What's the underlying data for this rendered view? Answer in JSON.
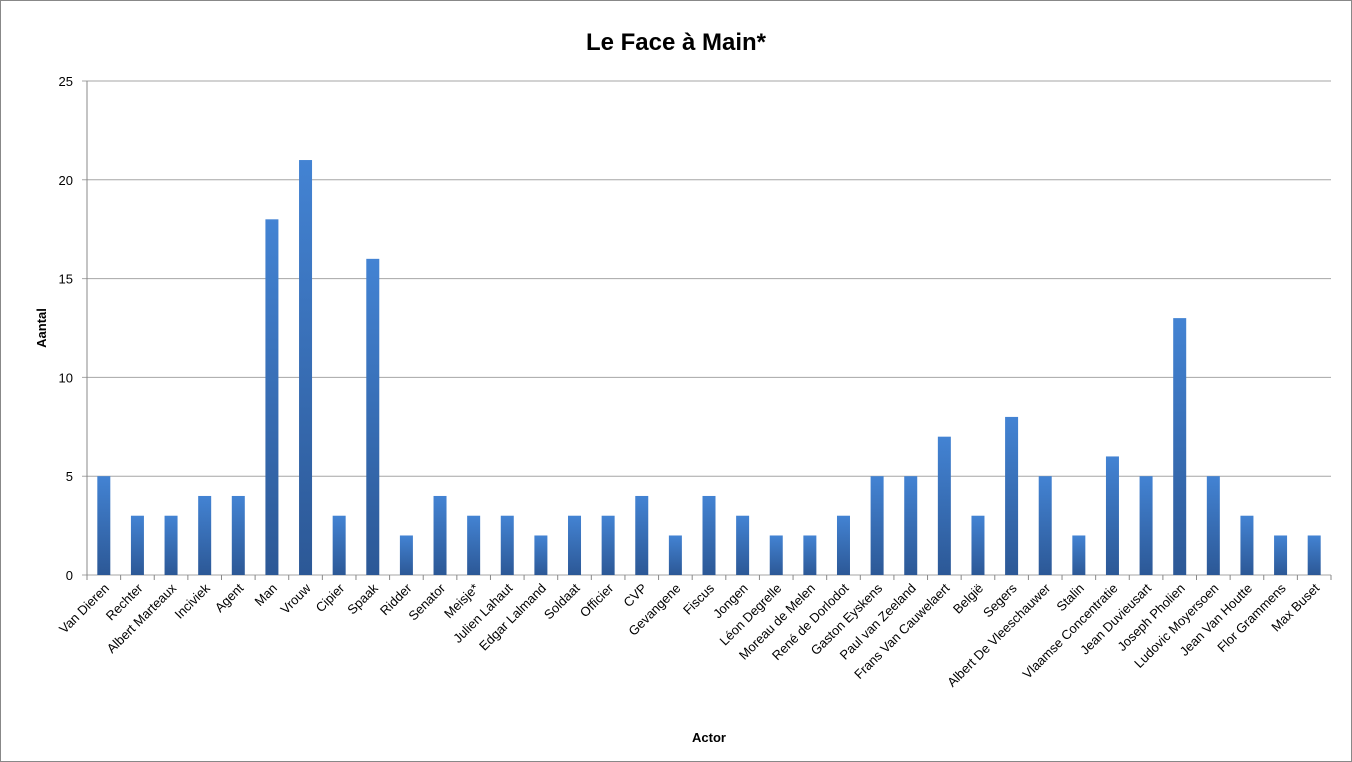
{
  "chart_data": {
    "type": "bar",
    "title": "Le Face à Main*",
    "x_label": "Actor",
    "y_label": "Aantal",
    "categories": [
      "Van Dieren",
      "Rechter",
      "Albert Marteaux",
      "Inciviek",
      "Agent",
      "Man",
      "Vrouw",
      "Cipier",
      "Spaak",
      "Ridder",
      "Senator",
      "Meisje*",
      "Julien Lahaut",
      "Edgar Lalmand",
      "Soldaat",
      "Officier",
      "CVP",
      "Gevangene",
      "Fiscus",
      "Jongen",
      "Léon Degrelle",
      "Moreau de Melen",
      "René de Dorlodot",
      "Gaston Eyskens",
      "Paul van Zeeland",
      "Frans Van Cauwelaert",
      "België",
      "Segers",
      "Albert De Vleeschauwer",
      "Stalin",
      "Vlaamse Concentratie",
      "Jean Duvieusart",
      "Joseph Pholien",
      "Ludovic Moyersoen",
      "Jean Van Houtte",
      "Flor Grammens",
      "Max Buset"
    ],
    "values": [
      5,
      3,
      3,
      4,
      4,
      18,
      21,
      3,
      16,
      2,
      4,
      3,
      3,
      2,
      3,
      3,
      4,
      2,
      4,
      3,
      2,
      2,
      3,
      5,
      5,
      7,
      3,
      8,
      5,
      2,
      6,
      5,
      13,
      5,
      3,
      2,
      2
    ],
    "color": "#4383d3",
    "ylim": [
      0,
      25
    ],
    "yticks": [
      0,
      5,
      10,
      15,
      20,
      25
    ],
    "grid": true
  }
}
